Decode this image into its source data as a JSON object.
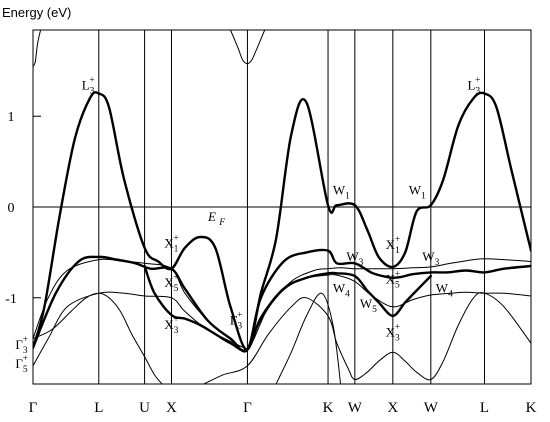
{
  "chart_data": {
    "type": "line",
    "title": "",
    "ylabel": "Energy (eV)",
    "xlabel": "",
    "ylim": [
      -1.95,
      1.95
    ],
    "grid": false,
    "yticks": [
      {
        "value": 1,
        "label": "1"
      },
      {
        "value": 0,
        "label": "0"
      },
      {
        "value": -1,
        "label": "-1"
      }
    ],
    "kpoints": [
      {
        "label": "Γ",
        "x": 0
      },
      {
        "label": "L",
        "x": 0.866
      },
      {
        "label": "U",
        "x": 1.469
      },
      {
        "label": "X",
        "x": 1.823
      },
      {
        "label": "Γ",
        "x": 2.823
      },
      {
        "label": "K",
        "x": 3.884
      },
      {
        "label": "W",
        "x": 4.237
      },
      {
        "label": "X",
        "x": 4.737
      },
      {
        "label": "W",
        "x": 5.237
      },
      {
        "label": "L",
        "x": 5.944
      },
      {
        "label": "K",
        "x": 6.556
      }
    ],
    "fermi_level": {
      "energy": 0,
      "label": "E",
      "sub": "F"
    },
    "series": [
      {
        "style": "bold",
        "x": [
          0,
          0.15,
          0.35,
          0.55,
          0.75,
          0.866,
          1.0,
          1.2,
          1.469,
          1.65,
          1.823,
          2.0,
          2.2,
          2.4,
          2.6,
          2.823,
          3.0,
          3.2,
          3.4,
          3.6,
          3.884,
          4.0,
          4.237,
          4.4,
          4.55,
          4.737,
          4.9,
          5.05,
          5.237,
          5.4,
          5.6,
          5.8,
          5.944,
          6.1,
          6.3,
          6.556
        ],
        "y": [
          -1.55,
          -1.1,
          -0.1,
          0.75,
          1.2,
          1.25,
          1.1,
          0.3,
          -0.45,
          -0.6,
          -0.68,
          -0.45,
          -0.33,
          -0.45,
          -1.1,
          -1.57,
          -0.95,
          -0.35,
          0.8,
          1.15,
          0.02,
          0.02,
          0.02,
          -0.25,
          -0.55,
          -0.66,
          -0.5,
          -0.05,
          0.02,
          0.3,
          0.9,
          1.2,
          1.25,
          1.1,
          0.4,
          -0.48
        ]
      },
      {
        "style": "bold",
        "x": [
          0,
          0.3,
          0.6,
          0.866,
          1.1,
          1.35,
          1.55,
          1.823,
          2.0,
          2.3,
          2.6,
          2.823,
          3.0,
          3.3,
          3.6,
          3.884,
          4.0,
          4.237,
          4.45,
          4.6,
          4.737,
          4.85,
          5.0,
          5.237,
          5.45,
          5.7,
          5.944,
          6.2,
          6.556
        ],
        "y": [
          -1.55,
          -0.95,
          -0.6,
          -0.55,
          -0.58,
          -0.62,
          -0.68,
          -0.68,
          -0.9,
          -1.25,
          -1.45,
          -1.57,
          -1.0,
          -0.6,
          -0.5,
          -0.48,
          -0.62,
          -0.62,
          -0.72,
          -0.76,
          -0.78,
          -0.77,
          -0.74,
          -0.72,
          -0.72,
          -0.7,
          -0.72,
          -0.68,
          -0.65
        ]
      },
      {
        "style": "bold",
        "x": [
          1.469,
          1.6,
          1.823,
          2.0,
          2.2,
          2.4,
          2.6,
          2.823,
          3.0,
          3.3,
          3.6,
          3.884,
          4.0,
          4.237,
          4.4,
          4.55,
          4.737,
          4.9,
          5.05,
          5.237
        ],
        "y": [
          -0.65,
          -0.95,
          -1.19,
          -1.23,
          -1.3,
          -1.4,
          -1.5,
          -1.57,
          -1.22,
          -0.9,
          -0.78,
          -0.73,
          -0.73,
          -0.76,
          -0.92,
          -1.05,
          -1.2,
          -1.05,
          -0.92,
          -0.76
        ]
      },
      {
        "style": "thin",
        "x": [
          0,
          0.2,
          0.45,
          0.866,
          1.2,
          1.469,
          1.823,
          2.0,
          2.3,
          2.6,
          2.823,
          3.1,
          3.4,
          3.7,
          3.884,
          4.05,
          4.237,
          4.45,
          4.737,
          5.0,
          5.237,
          5.5,
          5.8,
          5.944,
          6.2,
          6.556
        ],
        "y": [
          -1.45,
          -1.0,
          -0.7,
          -0.58,
          -0.6,
          -0.62,
          -0.68,
          -0.95,
          -1.25,
          -1.45,
          -1.57,
          -1.1,
          -0.82,
          -0.7,
          -0.68,
          -0.67,
          -0.68,
          -0.68,
          -0.68,
          -0.67,
          -0.66,
          -0.62,
          -0.58,
          -0.57,
          -0.58,
          -0.6
        ]
      },
      {
        "style": "thin",
        "x": [
          0,
          0.2,
          0.45,
          0.866,
          1.2,
          1.469,
          1.823,
          2.0,
          2.3,
          2.823
        ],
        "y": [
          -1.75,
          -1.45,
          -1.1,
          -0.95,
          -0.95,
          -0.98,
          -1.0,
          -1.15,
          -1.35,
          -1.57
        ]
      },
      {
        "style": "thin",
        "x": [
          0,
          0.25,
          0.5,
          0.7,
          0.866,
          1.0,
          1.15,
          1.3,
          1.469,
          1.6,
          1.7
        ],
        "y": [
          -1.45,
          -1.35,
          -1.15,
          -1.0,
          -0.95,
          -1.0,
          -1.15,
          -1.4,
          -1.65,
          -1.85,
          -1.95
        ]
      },
      {
        "style": "thin",
        "x": [
          2.823,
          3.0,
          3.2,
          3.4,
          3.6,
          3.884,
          4.0,
          4.237,
          4.45,
          4.737,
          5.0,
          5.237,
          5.5,
          5.7,
          5.944,
          6.2,
          6.556
        ],
        "y": [
          -1.57,
          -1.25,
          -1.0,
          -0.85,
          -0.78,
          -0.75,
          -0.75,
          -0.82,
          -0.97,
          -1.1,
          -1.02,
          -0.97,
          -0.95,
          -0.94,
          -0.95,
          -0.95,
          -0.98
        ]
      },
      {
        "style": "thin",
        "x": [
          2.25,
          2.5,
          2.823,
          3.1,
          3.4,
          3.6,
          3.884,
          4.0,
          4.15,
          4.237,
          4.4,
          4.55,
          4.737,
          4.9,
          5.05,
          5.237,
          5.4,
          5.6,
          5.8,
          5.944,
          6.2,
          6.556
        ],
        "y": [
          -1.95,
          -1.85,
          -1.75,
          -1.4,
          -1.1,
          -1.0,
          -1.2,
          -1.5,
          -1.78,
          -1.9,
          -1.82,
          -1.7,
          -1.6,
          -1.7,
          -1.82,
          -1.9,
          -1.7,
          -1.3,
          -1.0,
          -0.95,
          -1.1,
          -1.5
        ]
      },
      {
        "style": "thin",
        "x": [
          3.2,
          3.4,
          3.6,
          3.8,
          3.95,
          4.05
        ],
        "y": [
          -1.95,
          -1.6,
          -1.2,
          -0.95,
          -1.3,
          -1.95
        ]
      },
      {
        "style": "thin",
        "x": [
          0,
          0.03,
          0.06,
          0.1
        ],
        "y": [
          1.55,
          1.6,
          1.8,
          1.95
        ]
      },
      {
        "style": "thin",
        "x": [
          2.6,
          2.7,
          2.76,
          2.823,
          2.88,
          2.95,
          3.05
        ],
        "y": [
          1.95,
          1.75,
          1.62,
          1.58,
          1.62,
          1.75,
          1.95
        ]
      }
    ],
    "annotations": [
      {
        "letter": "L",
        "sub": "3",
        "sup": "+",
        "x": 0.866,
        "y": 1.25,
        "anchor": "left"
      },
      {
        "letter": "L",
        "sub": "3",
        "sup": "+",
        "x": 5.944,
        "y": 1.25,
        "anchor": "left"
      },
      {
        "letter": "X",
        "sub": "1",
        "sup": "+",
        "x": 1.823,
        "y": -0.4,
        "anchor": "center"
      },
      {
        "letter": "X",
        "sub": "5",
        "sup": "+",
        "x": 1.823,
        "y": -0.84,
        "anchor": "center"
      },
      {
        "letter": "X",
        "sub": "3",
        "sup": "+",
        "x": 1.823,
        "y": -1.3,
        "anchor": "center"
      },
      {
        "letter": "Γ",
        "sub": "3",
        "sup": "+",
        "x": 2.823,
        "y": -1.25,
        "anchor": "right"
      },
      {
        "letter": "Γ",
        "sub": "3",
        "sup": "+",
        "x": 0,
        "y": -1.52,
        "anchor": "right"
      },
      {
        "letter": "Γ",
        "sub": "5",
        "sup": "+",
        "x": 0,
        "y": -1.73,
        "anchor": "right"
      },
      {
        "letter": "W",
        "sub": "1",
        "sup": "",
        "x": 4.237,
        "y": 0.18,
        "anchor": "right"
      },
      {
        "letter": "W",
        "sub": "1",
        "sup": "",
        "x": 5.237,
        "y": 0.18,
        "anchor": "right"
      },
      {
        "letter": "X",
        "sub": "1",
        "sup": "+",
        "x": 4.737,
        "y": -0.42,
        "anchor": "center"
      },
      {
        "letter": "X",
        "sub": "5",
        "sup": "+",
        "x": 4.737,
        "y": -0.8,
        "anchor": "center"
      },
      {
        "letter": "X",
        "sub": "3",
        "sup": "+",
        "x": 4.737,
        "y": -1.38,
        "anchor": "center"
      },
      {
        "letter": "W",
        "sub": "3",
        "sup": "",
        "x": 4.237,
        "y": -0.55,
        "anchor": "center"
      },
      {
        "letter": "W",
        "sub": "3",
        "sup": "",
        "x": 5.237,
        "y": -0.55,
        "anchor": "center"
      },
      {
        "letter": "W",
        "sub": "4",
        "sup": "",
        "x": 4.237,
        "y": -0.9,
        "anchor": "right"
      },
      {
        "letter": "W",
        "sub": "4",
        "sup": "",
        "x": 5.237,
        "y": -0.9,
        "anchor": "left"
      },
      {
        "letter": "W",
        "sub": "5",
        "sup": "",
        "x": 4.237,
        "y": -1.07,
        "anchor": "left"
      }
    ]
  }
}
